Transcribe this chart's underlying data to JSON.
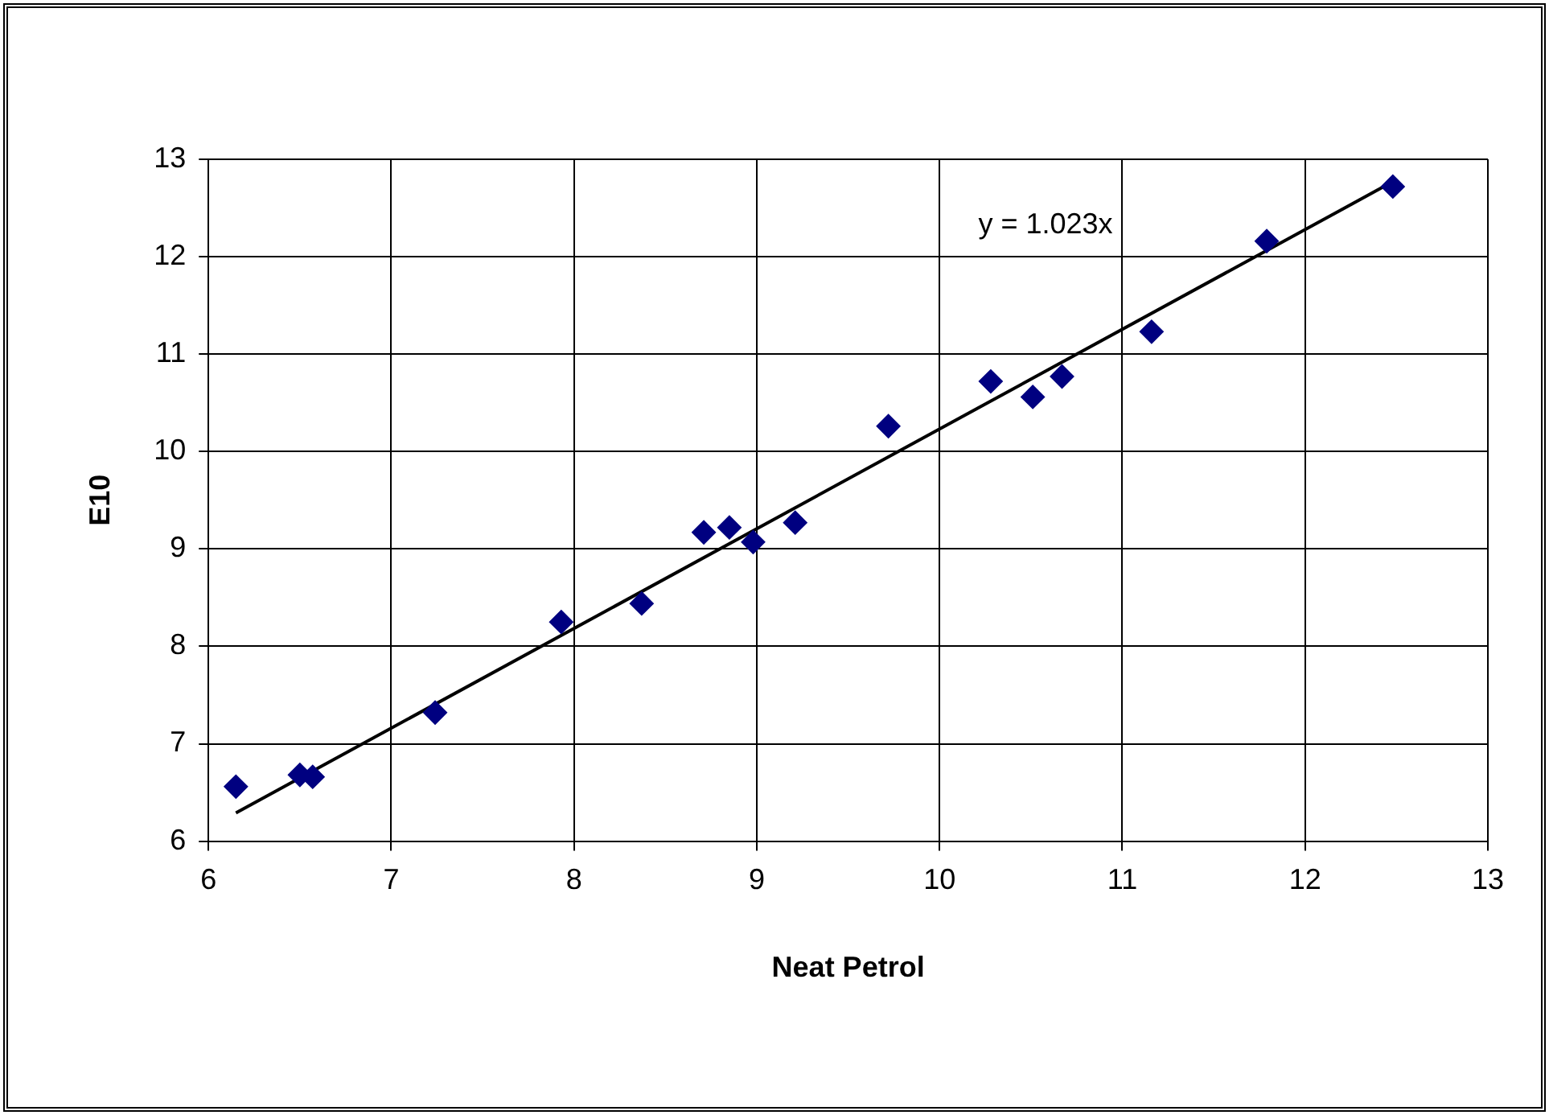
{
  "chart_data": {
    "type": "scatter",
    "xlabel": "Neat Petrol",
    "ylabel": "E10",
    "xlim": [
      6,
      13
    ],
    "xticks": [
      6,
      7,
      8,
      9,
      10,
      11,
      12,
      13
    ],
    "ylim": [
      6,
      13
    ],
    "yticks": [
      6,
      7,
      8,
      9,
      10,
      11,
      12,
      13
    ],
    "grid": true,
    "legend": false,
    "marker": "diamond",
    "series": [
      {
        "color": "#000080",
        "x": [
          6.15,
          6.5,
          6.57,
          7.24,
          7.93,
          8.37,
          8.71,
          8.85,
          8.98,
          9.21,
          9.72,
          10.28,
          10.51,
          10.67,
          11.16,
          11.79,
          12.48
        ],
        "values": [
          6.56,
          6.68,
          6.66,
          7.32,
          8.25,
          8.44,
          9.17,
          9.22,
          9.07,
          9.27,
          10.26,
          10.72,
          10.56,
          10.77,
          11.23,
          12.16,
          12.72
        ]
      },
      {
        "type": "line",
        "color": "#000000",
        "marker": "none",
        "x": [
          6.15,
          12.48
        ],
        "values": [
          6.29,
          12.77
        ]
      }
    ],
    "annotations": [
      "y = 1.023x"
    ]
  }
}
